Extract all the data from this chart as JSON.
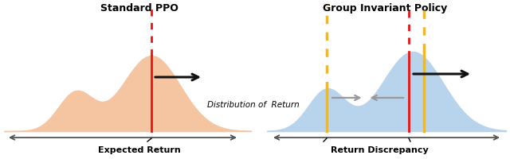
{
  "title_left": "Standard PPO",
  "title_right": "Group Invariant Policy",
  "label_left": "Expected Return",
  "label_right": "Return Discrepancy",
  "label_center": "Distribution of  Return",
  "left_fill_color": "#F5C4A0",
  "right_fill_color": "#B8D4ED",
  "left_edge_color": "#E8A878",
  "right_edge_color": "#88B4D8",
  "red_line_color": "#EE1111",
  "gold_line_color": "#FFB800",
  "arrow_color": "#111111",
  "gray_arrow_color": "#999999",
  "axis_arrow_color": "#555555",
  "bg_color": "#FFFFFF"
}
